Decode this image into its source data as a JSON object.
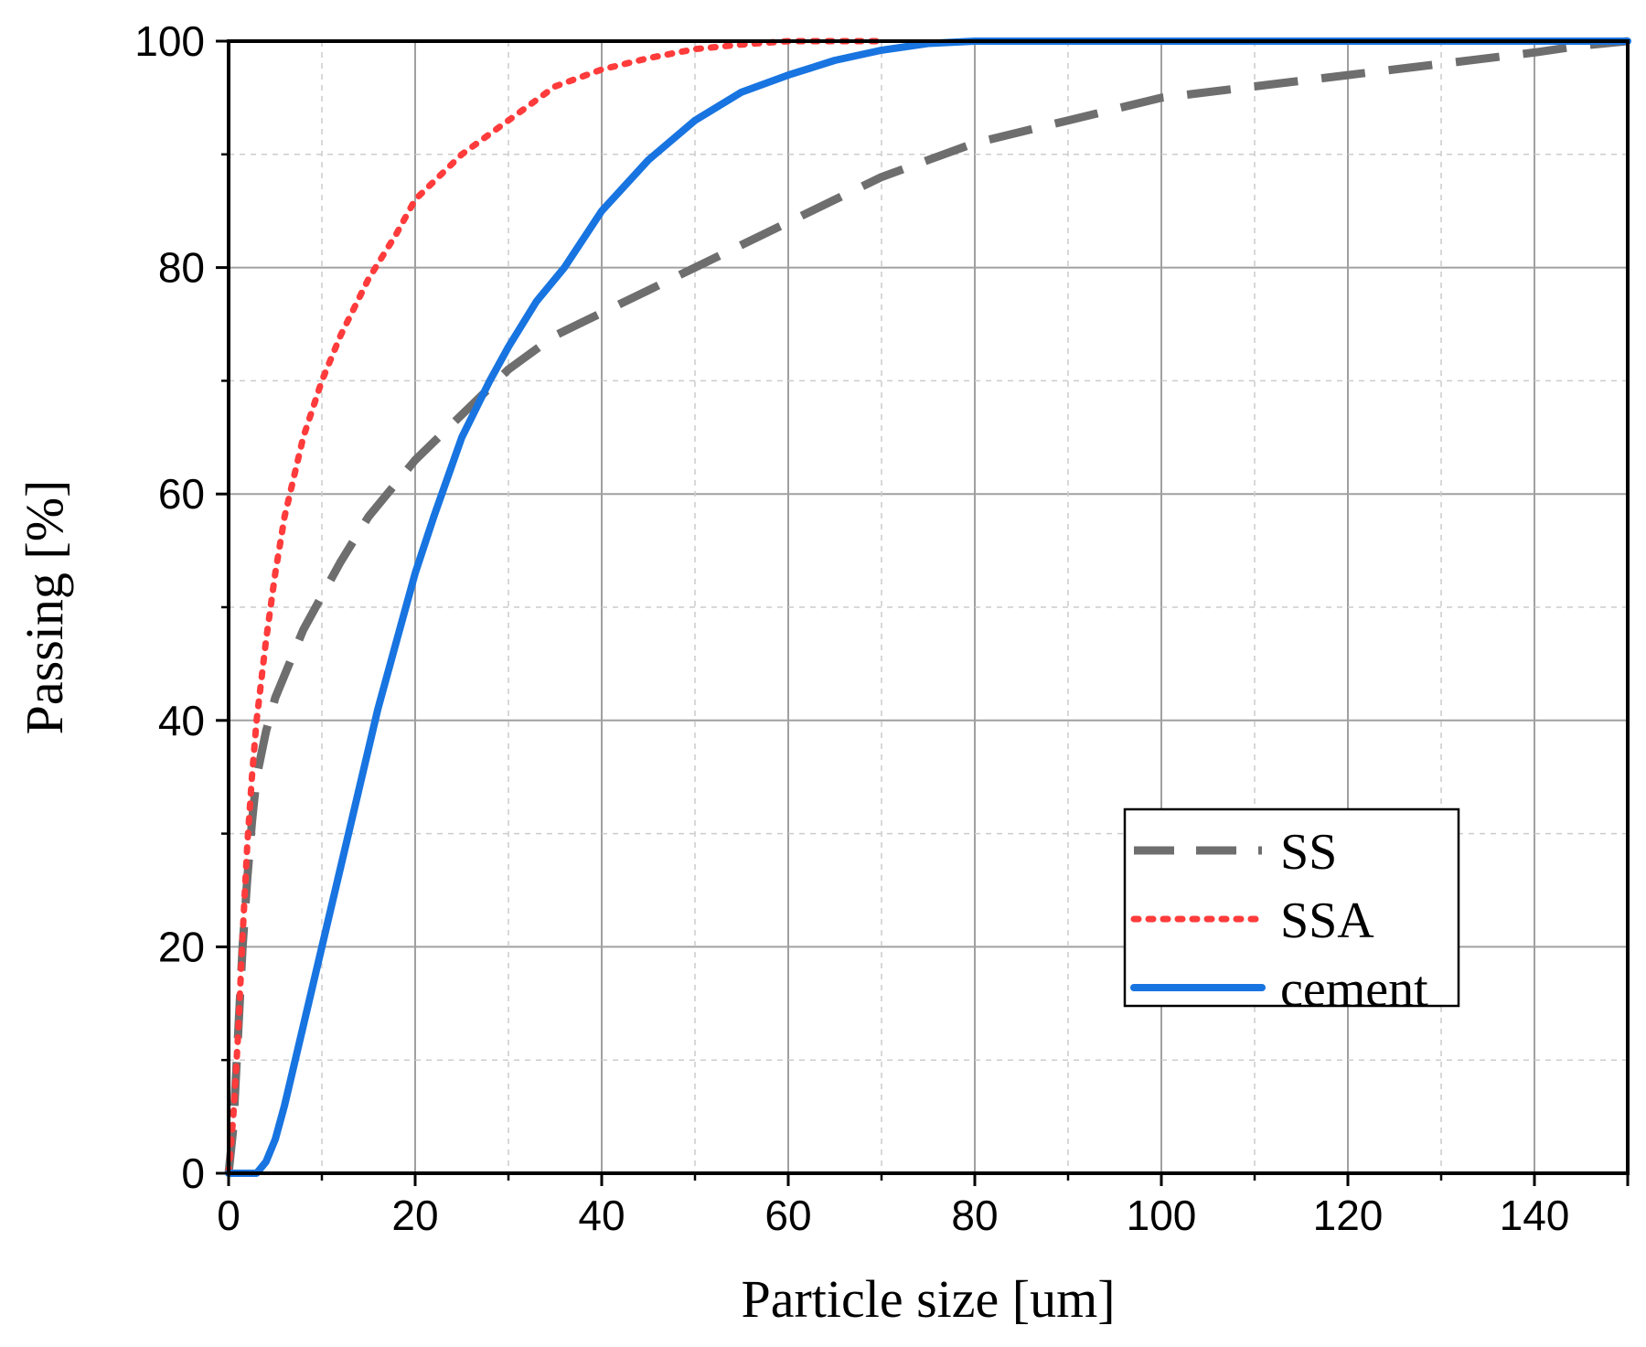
{
  "chart_data": {
    "type": "line",
    "title": "",
    "xlabel": "Particle size [um]",
    "ylabel": "Passing [%]",
    "xlim": [
      0,
      150
    ],
    "ylim": [
      0,
      100
    ],
    "xticks": [
      0,
      20,
      40,
      60,
      80,
      100,
      120,
      140
    ],
    "yticks": [
      0,
      20,
      40,
      60,
      80,
      100
    ],
    "xminor": [
      10,
      30,
      50,
      70,
      90,
      110,
      130
    ],
    "yminor": [
      10,
      30,
      50,
      70,
      90
    ],
    "grid": true,
    "legend_position": "bottom-right",
    "series": [
      {
        "name": "SS",
        "color": "#6e6e6e",
        "style": "dashed",
        "x": [
          0,
          0.5,
          1,
          1.5,
          2,
          2.5,
          3,
          4,
          5,
          6,
          8,
          10,
          12,
          15,
          18,
          20,
          25,
          30,
          35,
          40,
          45,
          50,
          55,
          60,
          65,
          70,
          80,
          90,
          100,
          110,
          120,
          130,
          140,
          145,
          150
        ],
        "y": [
          0,
          4,
          12,
          20,
          26,
          31,
          35,
          39,
          42,
          44,
          48,
          51,
          54,
          58,
          61,
          63,
          67,
          71,
          74,
          76,
          78,
          80,
          82,
          84,
          86,
          88,
          91,
          93,
          95,
          96,
          97,
          98,
          99,
          99.6,
          100
        ]
      },
      {
        "name": "SSA",
        "color": "#ff3b3b",
        "style": "dotted",
        "x": [
          0,
          0.5,
          1,
          1.5,
          2,
          2.5,
          3,
          4,
          5,
          6,
          8,
          10,
          12,
          15,
          18,
          20,
          25,
          30,
          35,
          40,
          45,
          50,
          55,
          60,
          65,
          70
        ],
        "y": [
          0,
          5,
          12,
          21,
          29,
          35,
          40,
          47,
          53,
          58,
          65,
          70,
          74,
          79,
          83,
          86,
          90,
          93,
          96,
          97.5,
          98.5,
          99.3,
          99.7,
          100,
          100,
          100
        ]
      },
      {
        "name": "cement",
        "color": "#1874e0",
        "style": "solid",
        "x": [
          0,
          3,
          4,
          5,
          6,
          8,
          10,
          12,
          14,
          16,
          18,
          20,
          22,
          25,
          28,
          30,
          33,
          36,
          40,
          45,
          50,
          55,
          60,
          65,
          70,
          75,
          80,
          90,
          100,
          150
        ],
        "y": [
          0,
          0,
          1,
          3,
          6,
          13,
          20,
          27,
          34,
          41,
          47,
          53,
          58,
          65,
          70,
          73,
          77,
          80,
          85,
          89.5,
          93,
          95.5,
          97,
          98.3,
          99.2,
          99.8,
          100,
          100,
          100,
          100
        ]
      }
    ]
  }
}
